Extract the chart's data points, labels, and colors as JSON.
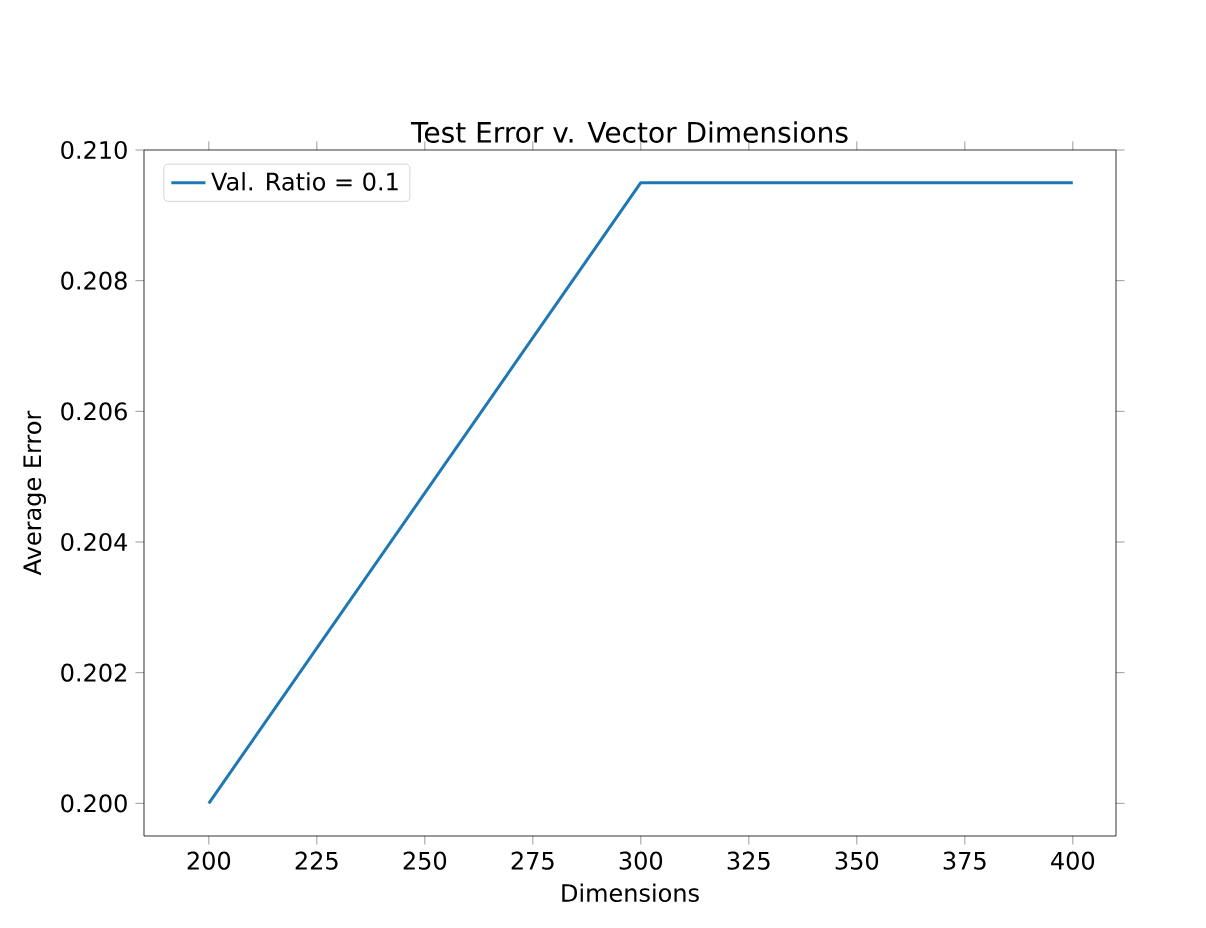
{
  "chart_data": {
    "type": "line",
    "title": "Test Error v. Vector Dimensions",
    "xlabel": "Dimensions",
    "ylabel": "Average Error",
    "x": [
      200,
      300,
      400
    ],
    "series": [
      {
        "name": "Val. Ratio = 0.1",
        "color": "#1f77b4",
        "values": [
          0.2,
          0.2095,
          0.2095
        ]
      }
    ],
    "xlim": [
      185,
      410
    ],
    "ylim": [
      0.1995,
      0.21
    ],
    "xticks": [
      200,
      225,
      250,
      275,
      300,
      325,
      350,
      375,
      400
    ],
    "yticks": [
      {
        "value": 0.2,
        "label": "0.200"
      },
      {
        "value": 0.202,
        "label": "0.202"
      },
      {
        "value": 0.204,
        "label": "0.204"
      },
      {
        "value": 0.206,
        "label": "0.206"
      },
      {
        "value": 0.208,
        "label": "0.208"
      },
      {
        "value": 0.21,
        "label": "0.210"
      }
    ],
    "legend": "top left",
    "grid": false
  }
}
